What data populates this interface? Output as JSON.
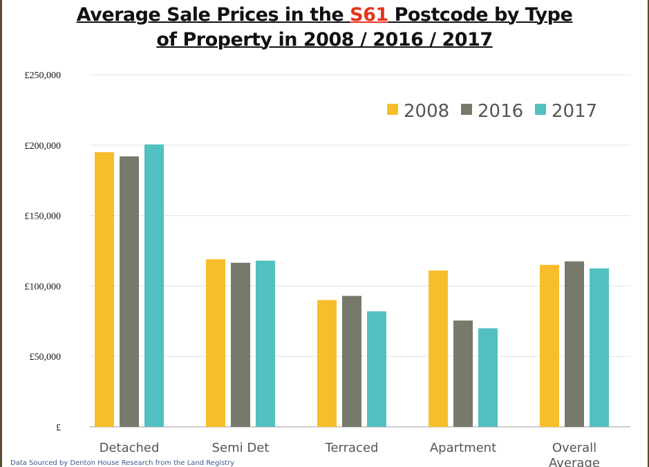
{
  "chart_data": {
    "type": "bar",
    "title_parts": {
      "before": "Average Sale Prices in the ",
      "highlight": "S61",
      "after_line1": " Postcode by Type",
      "line2": "of Property in 2008 / 2016 / 2017"
    },
    "categories": [
      "Detached",
      "Semi Det",
      "Terraced",
      "Apartment",
      "Overall Average"
    ],
    "series": [
      {
        "name": "2008",
        "color": "#f8bd2a",
        "values": [
          195000,
          119000,
          90000,
          111000,
          115000
        ]
      },
      {
        "name": "2016",
        "color": "#77796a",
        "values": [
          192000,
          116500,
          93000,
          75500,
          117500
        ]
      },
      {
        "name": "2017",
        "color": "#52bfc1",
        "values": [
          200500,
          118000,
          82000,
          70000,
          112500
        ]
      }
    ],
    "ylim": [
      0,
      250000
    ],
    "yticks": [
      0,
      50000,
      100000,
      150000,
      200000,
      250000
    ],
    "ytick_labels": [
      "£",
      "£50,000",
      "£100,000",
      "£150,000",
      "£200,000",
      "£250,000"
    ],
    "grid": true,
    "legend": "top-right",
    "source_note": "Data Sourced by Denton House Research from the Land Registry"
  }
}
